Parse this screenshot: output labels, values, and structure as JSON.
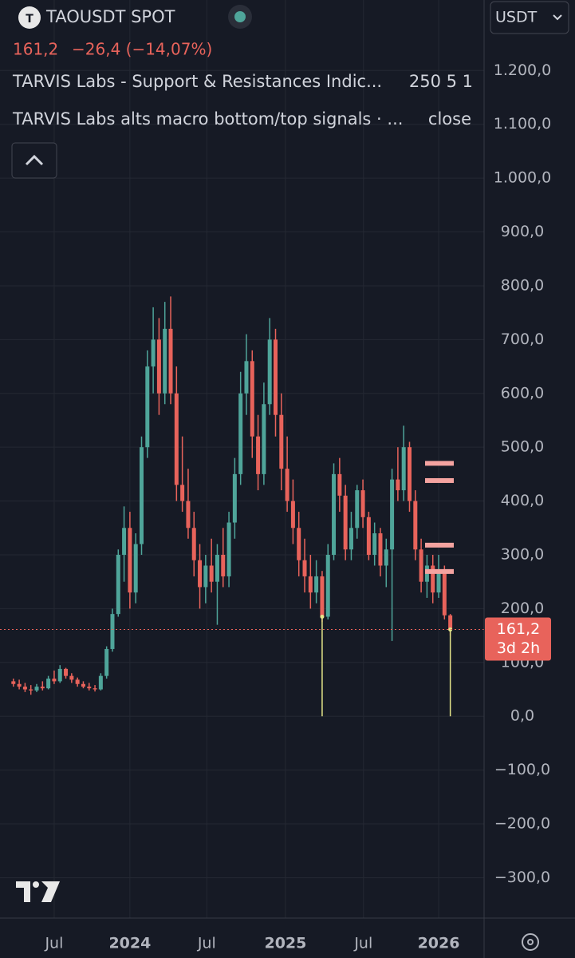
{
  "chart_data": {
    "type": "candlestick",
    "title": "TAOUSDT SPOT",
    "price": "161,2",
    "change": "−26,4 (−14,07%)",
    "indicators": [
      {
        "name": "TARVIS Labs - Support & Resistances Indic...",
        "params": "250 5 1"
      },
      {
        "name": "TARVIS Labs alts macro bottom/top signals · ...",
        "params": "close"
      }
    ],
    "currency": "USDT",
    "last_price_label": "161,2",
    "countdown": "3d 2h",
    "up_color": "#4fa59a",
    "down_color": "#e8635b",
    "ylim": [
      -375,
      1331
    ],
    "xlim": [
      -2.3,
      80.8
    ],
    "yticks": [
      {
        "value": -300,
        "label": "−300,0"
      },
      {
        "value": -200,
        "label": "−200,0"
      },
      {
        "value": -100,
        "label": "−100,0"
      },
      {
        "value": 0,
        "label": "0,0"
      },
      {
        "value": 100,
        "label": "100,0"
      },
      {
        "value": 200,
        "label": "200,0"
      },
      {
        "value": 300,
        "label": "300,0"
      },
      {
        "value": 400,
        "label": "400,0"
      },
      {
        "value": 500,
        "label": "500,0"
      },
      {
        "value": 600,
        "label": "600,0"
      },
      {
        "value": 700,
        "label": "700,0"
      },
      {
        "value": 800,
        "label": "800,0"
      },
      {
        "value": 900,
        "label": "900,0"
      },
      {
        "value": 1000,
        "label": "1.000,0"
      },
      {
        "value": 1100,
        "label": "1.100,0"
      },
      {
        "value": 1200,
        "label": "1.200,0"
      }
    ],
    "xticks": [
      {
        "value": 7,
        "label": "Jul"
      },
      {
        "value": 20,
        "label": "2024"
      },
      {
        "value": 33.2,
        "label": "Jul"
      },
      {
        "value": 46.7,
        "label": "2025"
      },
      {
        "value": 60.1,
        "label": "Jul"
      },
      {
        "value": 73,
        "label": "2026"
      }
    ],
    "grid": true,
    "ohlc": [
      [
        65,
        70,
        55,
        60
      ],
      [
        60,
        68,
        50,
        55
      ],
      [
        55,
        62,
        45,
        50
      ],
      [
        50,
        58,
        40,
        48
      ],
      [
        48,
        60,
        45,
        55
      ],
      [
        55,
        65,
        48,
        52
      ],
      [
        52,
        75,
        50,
        70
      ],
      [
        70,
        85,
        60,
        65
      ],
      [
        65,
        95,
        62,
        88
      ],
      [
        88,
        90,
        70,
        75
      ],
      [
        75,
        80,
        62,
        68
      ],
      [
        68,
        72,
        55,
        60
      ],
      [
        60,
        65,
        52,
        55
      ],
      [
        55,
        62,
        48,
        52
      ],
      [
        52,
        58,
        46,
        50
      ],
      [
        50,
        80,
        48,
        75
      ],
      [
        75,
        130,
        70,
        125
      ],
      [
        125,
        200,
        120,
        190
      ],
      [
        190,
        310,
        185,
        300
      ],
      [
        300,
        390,
        250,
        350
      ],
      [
        350,
        380,
        200,
        230
      ],
      [
        230,
        340,
        210,
        320
      ],
      [
        320,
        520,
        300,
        500
      ],
      [
        500,
        680,
        480,
        650
      ],
      [
        650,
        760,
        600,
        700
      ],
      [
        700,
        740,
        560,
        600
      ],
      [
        600,
        770,
        580,
        720
      ],
      [
        720,
        780,
        580,
        600
      ],
      [
        600,
        650,
        400,
        430
      ],
      [
        430,
        520,
        380,
        400
      ],
      [
        400,
        460,
        330,
        350
      ],
      [
        350,
        380,
        260,
        290
      ],
      [
        290,
        320,
        200,
        240
      ],
      [
        240,
        300,
        210,
        280
      ],
      [
        280,
        330,
        230,
        250
      ],
      [
        250,
        320,
        170,
        300
      ],
      [
        300,
        350,
        240,
        260
      ],
      [
        260,
        380,
        240,
        360
      ],
      [
        360,
        480,
        330,
        450
      ],
      [
        450,
        640,
        430,
        600
      ],
      [
        600,
        710,
        560,
        660
      ],
      [
        660,
        680,
        480,
        520
      ],
      [
        520,
        560,
        420,
        450
      ],
      [
        450,
        620,
        430,
        580
      ],
      [
        580,
        740,
        560,
        700
      ],
      [
        700,
        720,
        520,
        560
      ],
      [
        560,
        600,
        420,
        460
      ],
      [
        460,
        520,
        380,
        400
      ],
      [
        400,
        440,
        320,
        350
      ],
      [
        350,
        380,
        260,
        290
      ],
      [
        290,
        330,
        230,
        260
      ],
      [
        260,
        300,
        200,
        230
      ],
      [
        230,
        290,
        210,
        260
      ],
      [
        260,
        270,
        175,
        185
      ],
      [
        185,
        320,
        180,
        300
      ],
      [
        300,
        470,
        290,
        450
      ],
      [
        450,
        480,
        380,
        410
      ],
      [
        410,
        430,
        290,
        310
      ],
      [
        310,
        380,
        290,
        350
      ],
      [
        350,
        430,
        330,
        420
      ],
      [
        420,
        440,
        350,
        370
      ],
      [
        370,
        380,
        290,
        300
      ],
      [
        300,
        360,
        280,
        340
      ],
      [
        340,
        350,
        260,
        280
      ],
      [
        280,
        330,
        240,
        310
      ],
      [
        310,
        460,
        140,
        440
      ],
      [
        440,
        500,
        400,
        420
      ],
      [
        420,
        540,
        400,
        500
      ],
      [
        500,
        510,
        380,
        400
      ],
      [
        400,
        420,
        290,
        310
      ],
      [
        310,
        330,
        230,
        250
      ],
      [
        250,
        300,
        220,
        280
      ],
      [
        280,
        300,
        210,
        230
      ],
      [
        230,
        300,
        220,
        270
      ],
      [
        270,
        280,
        180,
        187.6
      ],
      [
        187.6,
        190,
        150,
        161.2
      ]
    ],
    "levels": [
      470,
      438,
      318,
      269
    ],
    "level_color": "#f4a3a0",
    "signal_candles": [
      53,
      75
    ],
    "signal_color": "#e6e68a"
  }
}
